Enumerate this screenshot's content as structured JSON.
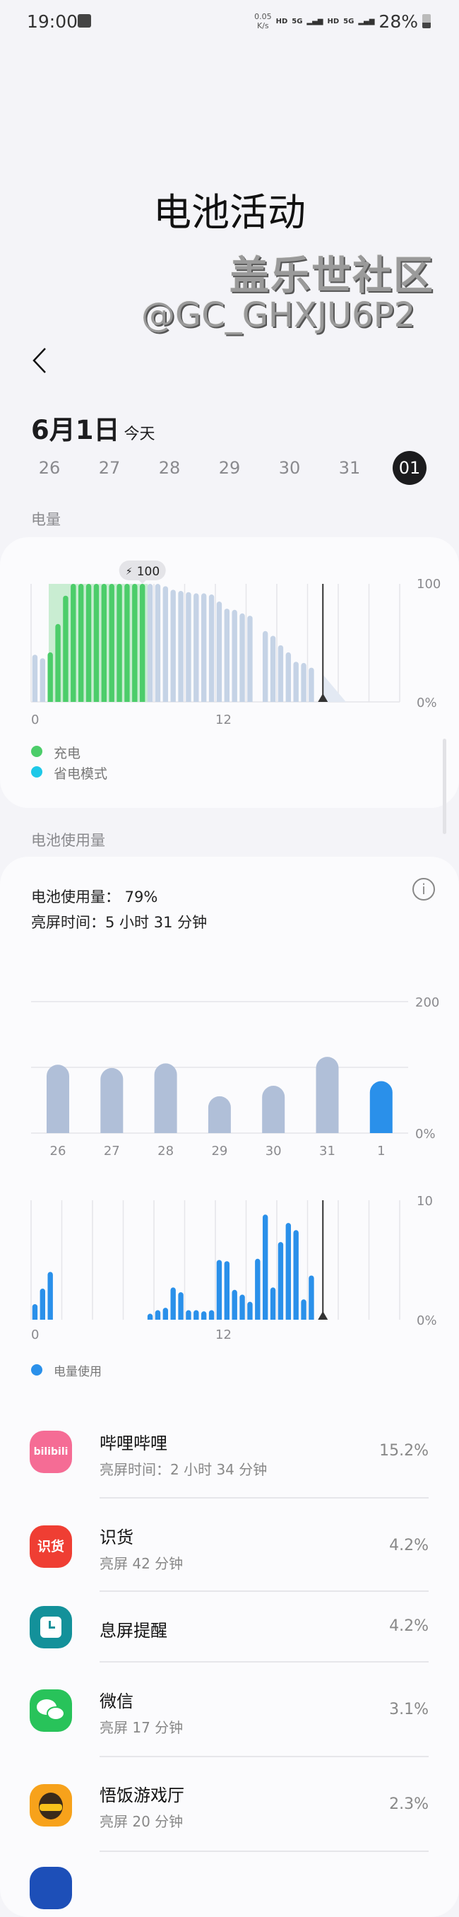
{
  "status_bar": {
    "time": "19:00",
    "net_speed_value": "0.05",
    "net_speed_unit": "K/s",
    "hd1": "HD",
    "net1": "5G",
    "hd2": "HD",
    "net2": "5G",
    "battery": "28%"
  },
  "header": {
    "title": "电池活动",
    "date": "6月1日",
    "date_note": "今天"
  },
  "day_strip": [
    {
      "label": "26",
      "selected": false
    },
    {
      "label": "27",
      "selected": false
    },
    {
      "label": "28",
      "selected": false
    },
    {
      "label": "29",
      "selected": false
    },
    {
      "label": "30",
      "selected": false
    },
    {
      "label": "31",
      "selected": false
    },
    {
      "label": "01",
      "selected": true
    }
  ],
  "battery_section": {
    "label": "电量",
    "badge": "100",
    "legend": [
      {
        "label": "充电",
        "color": "#4ccd6a"
      },
      {
        "label": "省电模式",
        "color": "#1ec8e8"
      }
    ]
  },
  "usage_section": {
    "label": "电池使用量",
    "usage_text": "电池使用量：  79%",
    "screen_time_text": "亮屏时间：5 小时 31 分钟",
    "legend": [
      {
        "label": "电量使用",
        "color": "#2a90ea"
      }
    ]
  },
  "colors": {
    "charging": "#4ccd6a",
    "battery_bar": "#c5d3e6",
    "week_bar": "#b0bfd8",
    "usage_bar": "#2a90ea"
  },
  "chart_data": [
    {
      "type": "bar",
      "x_ticks": [
        "0",
        "12"
      ],
      "y_ticks": [
        "100",
        "0%"
      ],
      "ylim": [
        0,
        100
      ],
      "x_range_hours": [
        0,
        24
      ],
      "slot_hours": 0.5,
      "values": [
        40,
        37,
        42,
        66,
        90,
        100,
        100,
        100,
        100,
        100,
        100,
        100,
        100,
        100,
        100,
        100,
        100,
        98,
        95,
        94,
        93,
        92,
        92,
        91,
        85,
        79,
        78,
        75,
        73,
        null,
        60,
        56,
        48,
        42,
        34,
        33,
        29
      ],
      "charging": [
        false,
        false,
        true,
        true,
        true,
        true,
        true,
        true,
        true,
        true,
        true,
        true,
        true,
        true,
        true,
        false,
        false,
        false,
        false,
        false,
        false,
        false,
        false,
        false,
        false,
        false,
        false,
        false,
        false,
        false,
        false,
        false,
        false,
        false,
        false,
        false,
        false
      ],
      "current_time_hours": 19,
      "projection_end_hours": 20.5,
      "grid": true
    },
    {
      "type": "bar",
      "categories": [
        "26",
        "27",
        "28",
        "29",
        "30",
        "31",
        "1"
      ],
      "values": [
        104,
        99,
        106,
        56,
        72,
        116,
        79
      ],
      "highlight_index": 6,
      "y_ticks": [
        "200",
        "0%"
      ],
      "ylim": [
        0,
        200
      ],
      "grid": true
    },
    {
      "type": "bar",
      "x_ticks": [
        "0",
        "12"
      ],
      "y_ticks": [
        "10",
        "0%"
      ],
      "ylim": [
        0,
        10
      ],
      "slot_hours": 0.5,
      "values": [
        1.3,
        2.6,
        4.0,
        null,
        null,
        null,
        null,
        null,
        null,
        null,
        null,
        null,
        null,
        null,
        null,
        0.5,
        0.8,
        1.0,
        2.7,
        2.3,
        0.8,
        0.8,
        0.7,
        0.8,
        5.0,
        4.9,
        2.5,
        2.1,
        1.5,
        5.1,
        8.8,
        2.7,
        6.5,
        8.1,
        7.5,
        1.7,
        3.7
      ],
      "current_time_hours": 19,
      "grid": true
    }
  ],
  "apps": [
    {
      "name": "哔哩哔哩",
      "sub": "亮屏时间：2 小时 34 分钟",
      "pct": "15.2%",
      "icon": "bilibili-icon",
      "icon_text": "bilibili",
      "color": "#f56c95"
    },
    {
      "name": "识货",
      "sub": "亮屏 42 分钟",
      "pct": "4.2%",
      "icon": "shihuo-icon",
      "icon_text": "识货",
      "color": "#ef3e33"
    },
    {
      "name": "息屏提醒",
      "sub": "",
      "pct": "4.2%",
      "icon": "clock-icon",
      "icon_text": "",
      "color": "#13919a"
    },
    {
      "name": "微信",
      "sub": "亮屏 17 分钟",
      "pct": "3.1%",
      "icon": "wechat-icon",
      "icon_text": "",
      "color": "#28c35a"
    },
    {
      "name": "悟饭游戏厅",
      "sub": "亮屏 20 分钟",
      "pct": "2.3%",
      "icon": "game-hall-icon",
      "icon_text": "",
      "color": "#f7a21b"
    }
  ],
  "watermark": {
    "line1": "盖乐世社区",
    "line2": "@GC_GHXJU6P2"
  }
}
